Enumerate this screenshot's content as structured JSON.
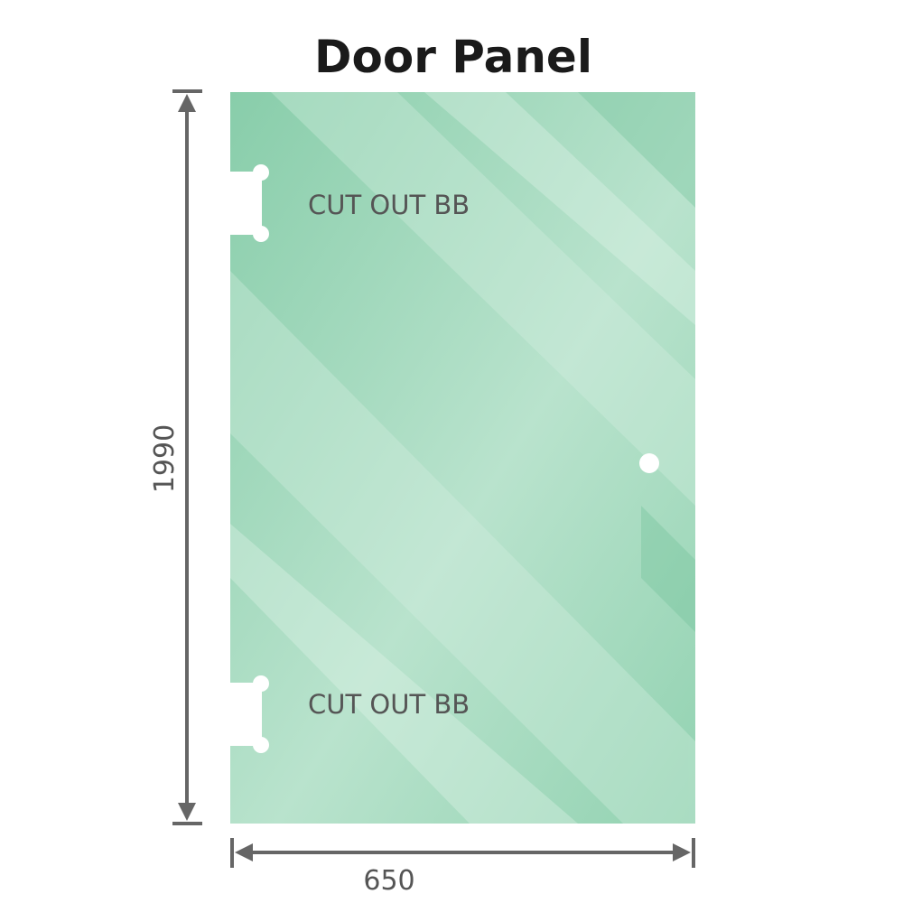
{
  "title": "Door Panel",
  "cutouts": [
    {
      "label": "CUT OUT BB"
    },
    {
      "label": "CUT OUT BB"
    }
  ],
  "dimensions": {
    "height": "1990",
    "width": "650"
  },
  "colors": {
    "glass": "#8fd0af",
    "glass_light": "#bfe5d2",
    "dimension_line": "#666666",
    "label": "#555555"
  }
}
